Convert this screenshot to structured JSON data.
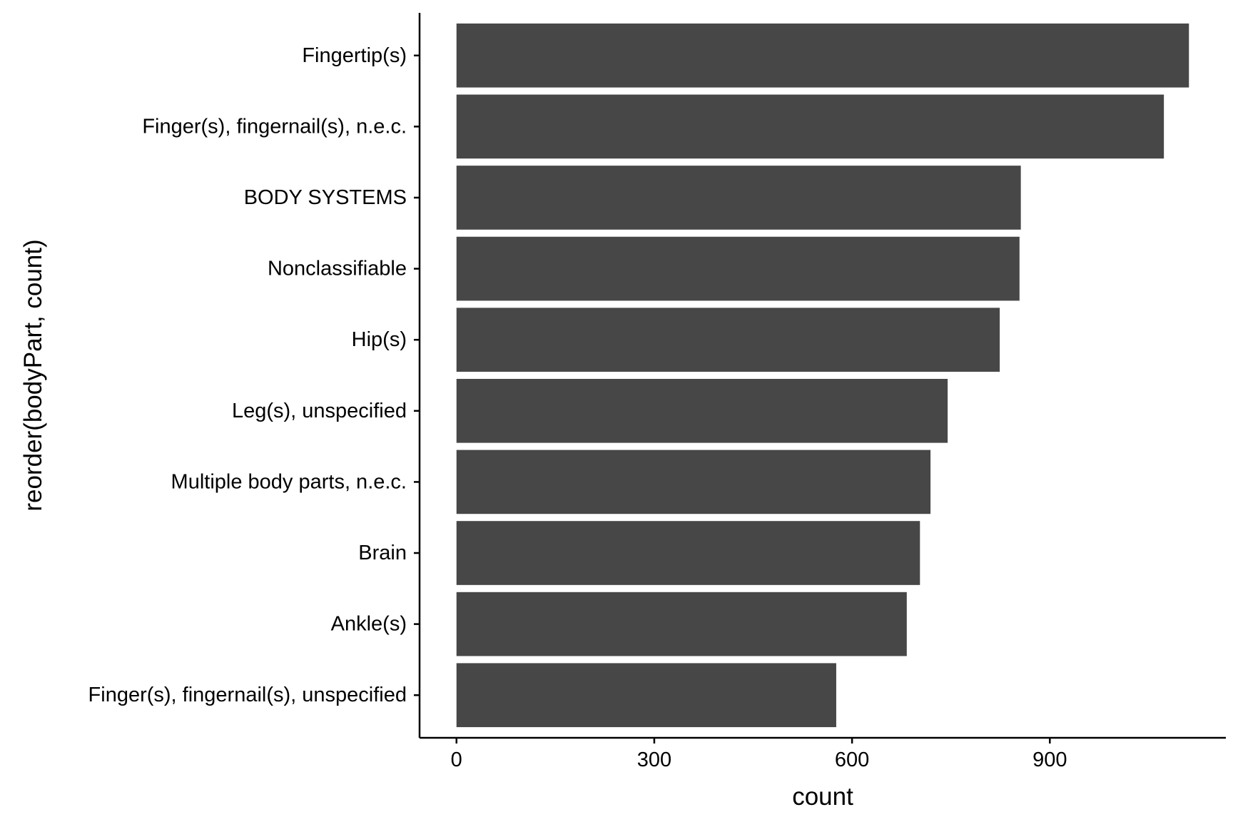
{
  "chart_data": {
    "type": "bar",
    "orientation": "horizontal",
    "title": "",
    "xlabel": "count",
    "ylabel": "reorder(bodyPart, count)",
    "categories": [
      "Finger(s), fingernail(s), unspecified",
      "Ankle(s)",
      "Brain",
      "Multiple body parts, n.e.c.",
      "Leg(s), unspecified",
      "Hip(s)",
      "Nonclassifiable",
      "BODY SYSTEMS",
      "Finger(s), fingernail(s), n.e.c.",
      "Fingertip(s)"
    ],
    "values": [
      576,
      683,
      703,
      719,
      745,
      824,
      854,
      856,
      1073,
      1111
    ],
    "xticks": [
      0,
      300,
      600,
      900
    ],
    "xlim": [
      -56,
      1167
    ],
    "grid": false,
    "legend": "none",
    "bar_color": "#474747",
    "axis_color": "#000000",
    "background_color": "#ffffff"
  }
}
